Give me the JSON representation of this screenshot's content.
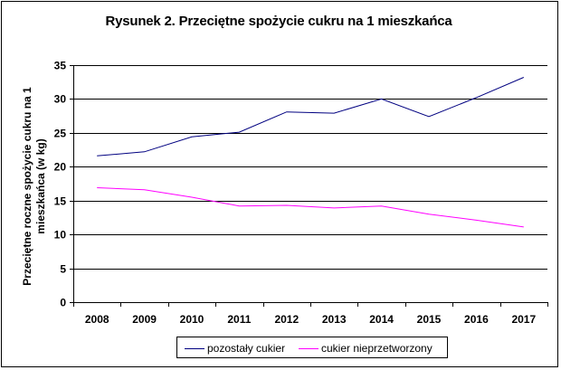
{
  "chart_data": {
    "type": "line",
    "title": "Rysunek 2. Przeciętne spożycie cukru na 1 mieszkańca",
    "ylabel": "Przeciętne roczne spożycie cukru na 1 mieszkańca (w kg)",
    "xlabel": "",
    "categories": [
      "2008",
      "2009",
      "2010",
      "2011",
      "2012",
      "2013",
      "2014",
      "2015",
      "2016",
      "2017"
    ],
    "ylim": [
      0,
      35
    ],
    "yticks": [
      "0",
      "5",
      "10",
      "15",
      "20",
      "25",
      "30",
      "35"
    ],
    "grid": true,
    "legend_position": "bottom",
    "series": [
      {
        "name": "pozostały cukier",
        "color": "#000080",
        "values": [
          21.6,
          22.2,
          24.4,
          25.1,
          28.1,
          27.9,
          30.0,
          27.4,
          30.2,
          33.2
        ]
      },
      {
        "name": "cukier nieprzetworzony",
        "color": "#ff00ff",
        "values": [
          16.9,
          16.6,
          15.5,
          14.2,
          14.3,
          13.9,
          14.2,
          13.0,
          12.1,
          11.1
        ]
      }
    ]
  }
}
